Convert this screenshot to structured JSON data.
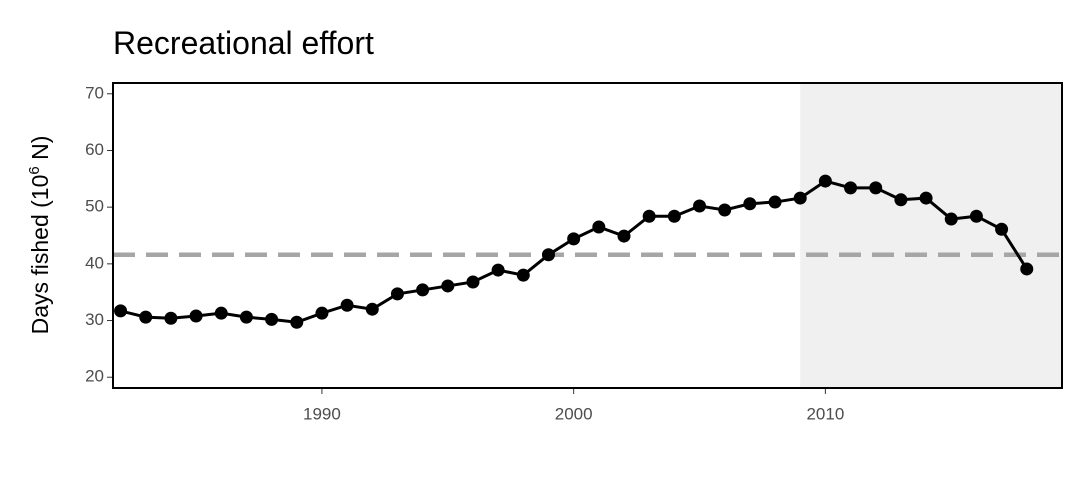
{
  "chart_data": {
    "type": "line",
    "title": "Recreational effort",
    "ylabel": "Days fished (10",
    "ylabel_sup": "6",
    "ylabel_end": " N)",
    "x": [
      1982,
      1983,
      1984,
      1985,
      1986,
      1987,
      1988,
      1989,
      1990,
      1991,
      1992,
      1993,
      1994,
      1995,
      1996,
      1997,
      1998,
      1999,
      2000,
      2001,
      2002,
      2003,
      2004,
      2005,
      2006,
      2007,
      2008,
      2009,
      2010,
      2011,
      2012,
      2013,
      2014,
      2015,
      2016,
      2017,
      2018
    ],
    "series": [
      {
        "color": "#000000",
        "values": [
          31.7,
          30.6,
          30.4,
          30.8,
          31.3,
          30.6,
          30.2,
          29.7,
          31.3,
          32.7,
          32.0,
          34.7,
          35.4,
          36.1,
          36.8,
          38.9,
          38.0,
          41.6,
          44.4,
          46.5,
          44.9,
          48.4,
          48.4,
          50.2,
          49.5,
          50.6,
          50.9,
          51.6,
          54.6,
          53.4,
          53.4,
          51.3,
          51.6,
          47.9,
          48.4,
          46.1,
          39.1
        ]
      }
    ],
    "xlim": [
      1981.7,
      2019.4
    ],
    "xticks": [
      1990,
      2000,
      2010
    ],
    "ylim": [
      18.1,
      71.9
    ],
    "yticks": [
      20,
      30,
      40,
      50,
      60,
      70
    ],
    "hline": 41.6,
    "hline_color": "#a6a6a6",
    "shade_from": 2009,
    "shade_color": "#f0f0f0"
  }
}
